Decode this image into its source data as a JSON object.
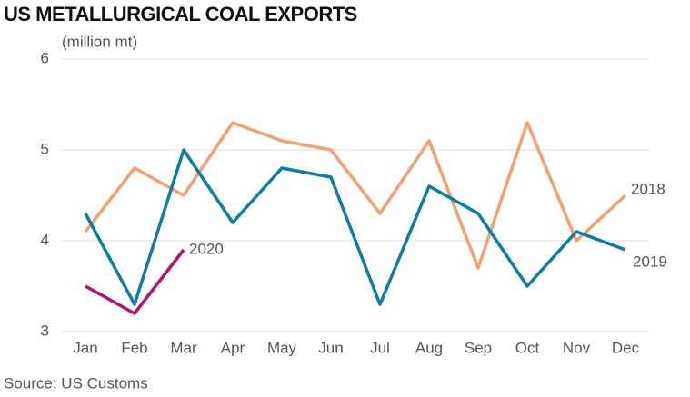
{
  "chart_data": {
    "type": "line",
    "title": "US METALLURGICAL COAL EXPORTS",
    "subtitle": "(million mt)",
    "source": "Source: US Customs",
    "categories": [
      "Jan",
      "Feb",
      "Mar",
      "Apr",
      "May",
      "Jun",
      "Jul",
      "Aug",
      "Sep",
      "Oct",
      "Nov",
      "Dec"
    ],
    "series": [
      {
        "name": "2018",
        "color": "#f4a070",
        "values": [
          4.1,
          4.8,
          4.5,
          5.3,
          5.1,
          5.0,
          4.3,
          5.1,
          3.7,
          5.3,
          4.0,
          4.5
        ]
      },
      {
        "name": "2019",
        "color": "#0a7ea4",
        "values": [
          4.3,
          3.3,
          5.0,
          4.2,
          4.8,
          4.7,
          3.3,
          4.6,
          4.3,
          3.5,
          4.1,
          3.9
        ]
      },
      {
        "name": "2020",
        "color": "#b5146c",
        "values": [
          3.5,
          3.2,
          3.9,
          null,
          null,
          null,
          null,
          null,
          null,
          null,
          null,
          null
        ]
      }
    ],
    "ylim": [
      3,
      6
    ],
    "yticks": [
      3,
      4,
      5,
      6
    ],
    "grid": true
  }
}
